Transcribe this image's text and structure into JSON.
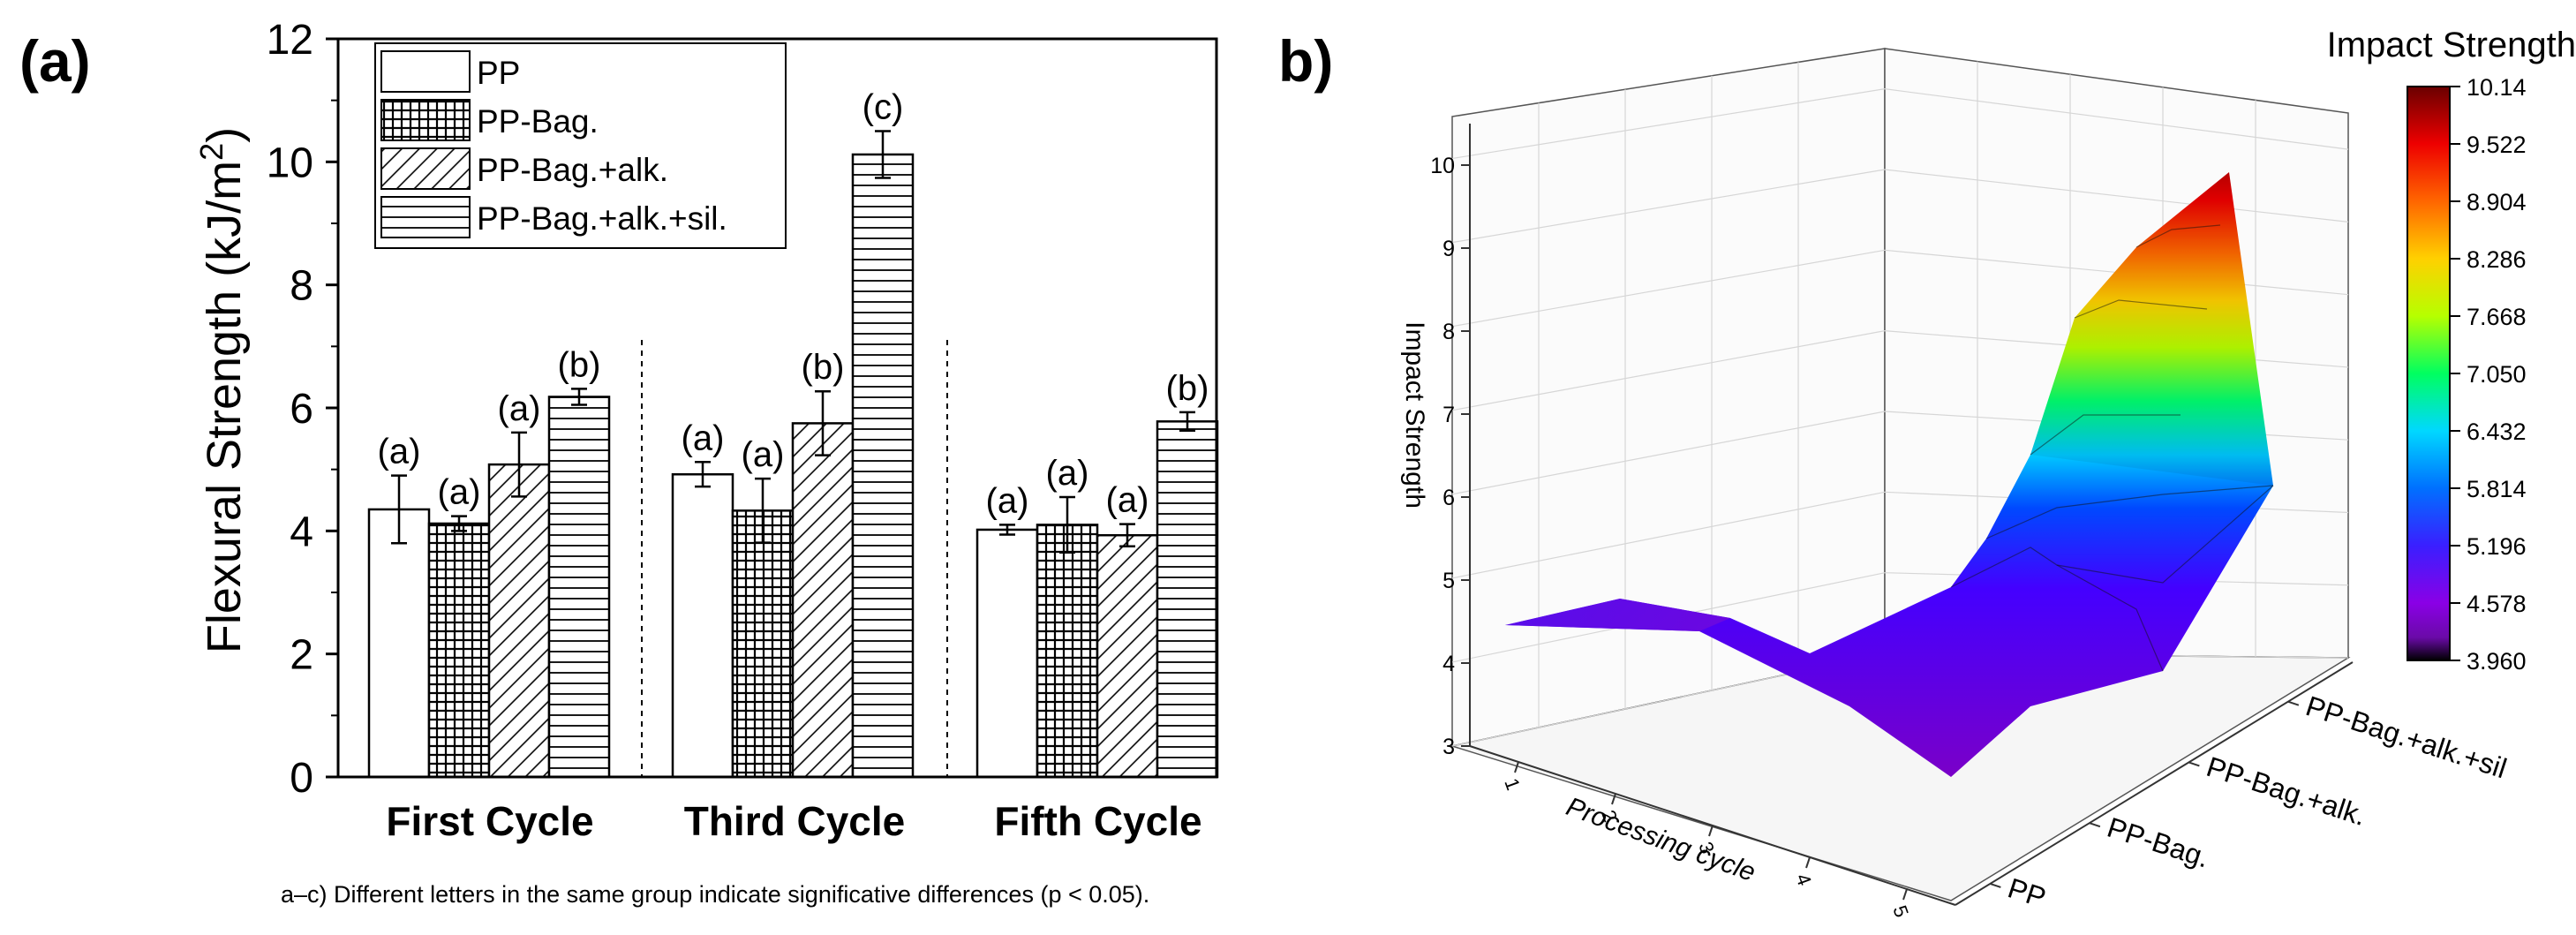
{
  "panel_a": {
    "label": "(a)",
    "footnote": "a–c) Different letters in the same group indicate significative differences (p < 0.05).",
    "chart_data": {
      "type": "bar",
      "ylabel": "Flexural Strength (kJ/m²)",
      "ylabel_main": "Flexural Strength (kJ/m",
      "ylabel_sup": "2",
      "ylabel_end": ")",
      "ylim": [
        0,
        12
      ],
      "yticks": [
        "0",
        "2",
        "4",
        "6",
        "8",
        "10",
        "12"
      ],
      "categories": [
        "First Cycle",
        "Third Cycle",
        "Fifth Cycle"
      ],
      "series": [
        {
          "name": "PP",
          "pattern": "empty",
          "values": [
            4.35,
            4.92,
            4.02
          ],
          "errors": [
            0.55,
            0.2,
            0.08
          ],
          "letters": [
            "(a)",
            "(a)",
            "(a)"
          ]
        },
        {
          "name": "PP-Bag.",
          "pattern": "crosshatch",
          "values": [
            4.12,
            4.33,
            4.1
          ],
          "errors": [
            0.12,
            0.52,
            0.45
          ],
          "letters": [
            "(a)",
            "(a)",
            "(a)"
          ]
        },
        {
          "name": "PP-Bag.+alk.",
          "pattern": "diagonal",
          "values": [
            5.08,
            5.75,
            3.93
          ],
          "errors": [
            0.52,
            0.52,
            0.18
          ],
          "letters": [
            "(a)",
            "(b)",
            "(a)"
          ]
        },
        {
          "name": "PP-Bag.+alk.+sil.",
          "pattern": "horizontal",
          "values": [
            6.18,
            10.12,
            5.78
          ],
          "errors": [
            0.13,
            0.38,
            0.15
          ],
          "letters": [
            "(b)",
            "(c)",
            "(b)"
          ]
        }
      ]
    }
  },
  "panel_b": {
    "label": "b)",
    "chart_data": {
      "type": "surface3d",
      "zlabel": "Impact Strength",
      "xlabel": "Processing cycle",
      "x_ticks": [
        "1",
        "2",
        "3",
        "4",
        "5"
      ],
      "y_ticks": [
        "PP",
        "PP-Bag.",
        "PP-Bag.+alk.",
        "PP-Bag.+alk.+sil"
      ],
      "z_ticks": [
        "3",
        "4",
        "5",
        "6",
        "7",
        "8",
        "9",
        "10"
      ],
      "zlim": [
        3,
        10.5
      ],
      "colorbar_title": "Impact Strength",
      "colorbar_ticks": [
        "10.14",
        "9.522",
        "8.904",
        "8.286",
        "7.668",
        "7.050",
        "6.432",
        "5.814",
        "5.196",
        "4.578",
        "3.960"
      ]
    }
  }
}
